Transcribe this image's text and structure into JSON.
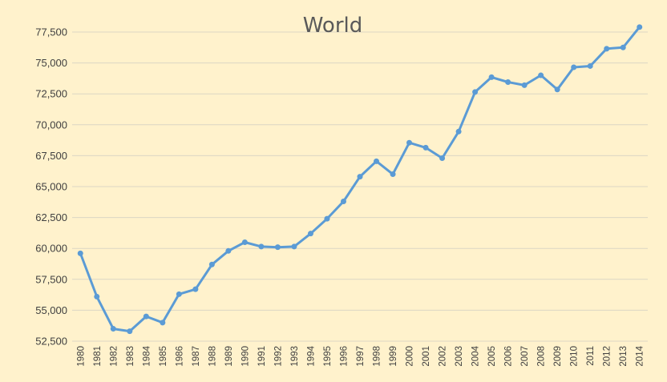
{
  "chart_data": {
    "type": "line",
    "title": "World",
    "xlabel": "",
    "ylabel": "",
    "categories": [
      "1980",
      "1981",
      "1982",
      "1983",
      "1984",
      "1985",
      "1986",
      "1987",
      "1988",
      "1989",
      "1990",
      "1991",
      "1992",
      "1993",
      "1994",
      "1995",
      "1996",
      "1997",
      "1998",
      "1999",
      "2000",
      "2001",
      "2002",
      "2003",
      "2004",
      "2005",
      "2006",
      "2007",
      "2008",
      "2009",
      "2010",
      "2011",
      "2012",
      "2013",
      "2014"
    ],
    "series": [
      {
        "values": [
          59600,
          56100,
          53500,
          53300,
          54500,
          54000,
          56300,
          56700,
          58700,
          59800,
          60500,
          60150,
          60100,
          60150,
          61200,
          62400,
          63800,
          65800,
          67050,
          66000,
          68550,
          68150,
          67300,
          69450,
          72650,
          73850,
          73450,
          73200,
          74000,
          72850,
          74650,
          74750,
          76150,
          76250,
          77900
        ],
        "color": "#5b9bd5"
      }
    ],
    "ylim": [
      52500,
      77500
    ],
    "yticks": [
      52500,
      55000,
      57500,
      60000,
      62500,
      65000,
      67500,
      70000,
      72500,
      75000,
      77500
    ],
    "ytick_labels": [
      "52,500",
      "55,000",
      "57,500",
      "60,000",
      "62,500",
      "65,000",
      "67,500",
      "70,000",
      "72,500",
      "75,000",
      "77,500"
    ],
    "grid": true,
    "legend": "none",
    "background_color": "#fff2cc",
    "grid_color": "#dcd6c4"
  }
}
